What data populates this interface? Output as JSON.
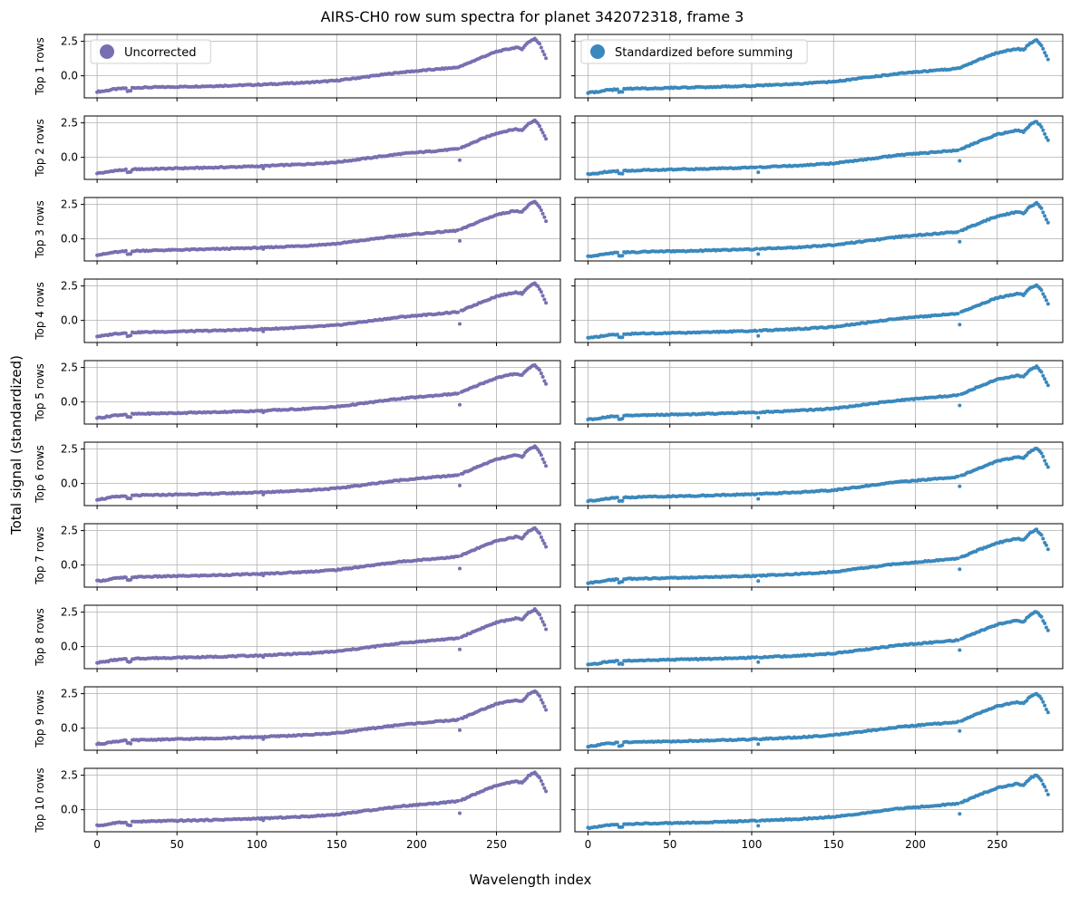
{
  "chart_data": {
    "type": "scatter",
    "title": "AIRS-CH0 row sum spectra for planet 342072318, frame 3",
    "xlabel": "Wavelength index",
    "ylabel": "Total signal (standardized)",
    "xlim": [
      -8,
      290
    ],
    "ylim": [
      -1.6,
      3.0
    ],
    "xticks": [
      0,
      50,
      100,
      150,
      200,
      250
    ],
    "yticks": [
      0.0,
      2.5
    ],
    "ytick_labels": [
      "0.0",
      "2.5"
    ],
    "grid": true,
    "n_points": 282,
    "legend_placement": "top-left",
    "series": [
      {
        "name": "Uncorrected",
        "color": "#7670b0",
        "column": "left"
      },
      {
        "name": "Standardized before summing",
        "color": "#3a88bd",
        "column": "right"
      }
    ],
    "rows": [
      {
        "label": "Top 1 rows"
      },
      {
        "label": "Top 2 rows"
      },
      {
        "label": "Top 3 rows"
      },
      {
        "label": "Top 4 rows"
      },
      {
        "label": "Top 5 rows"
      },
      {
        "label": "Top 6 rows"
      },
      {
        "label": "Top 7 rows"
      },
      {
        "label": "Top 8 rows"
      },
      {
        "label": "Top 9 rows"
      },
      {
        "label": "Top 10 rows"
      }
    ],
    "spectrum_profile": {
      "x": [
        0,
        5,
        10,
        20,
        30,
        50,
        70,
        100,
        130,
        150,
        170,
        190,
        210,
        225,
        228,
        240,
        250,
        262,
        266,
        270,
        274,
        277,
        281
      ],
      "y": [
        -1.15,
        -1.1,
        -0.98,
        -0.88,
        -0.85,
        -0.8,
        -0.75,
        -0.65,
        -0.5,
        -0.35,
        -0.05,
        0.25,
        0.45,
        0.6,
        0.7,
        1.3,
        1.75,
        2.05,
        1.95,
        2.45,
        2.7,
        2.3,
        1.3
      ]
    }
  }
}
